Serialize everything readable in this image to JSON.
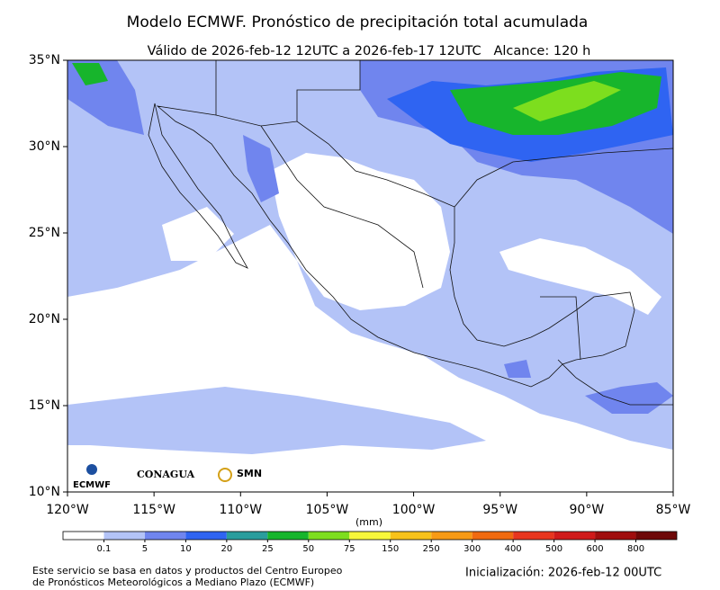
{
  "chart_data": {
    "type": "map",
    "title": "Modelo ECMWF. Pronóstico de precipitación total acumulada",
    "subtitle": "Válido de 2026-feb-12 12UTC a 2026-feb-17 12UTC   Alcance: 120 h",
    "xlim": [
      -120,
      -85
    ],
    "ylim": [
      10,
      35
    ],
    "xticks": [
      {
        "value": -120,
        "label": "120°W"
      },
      {
        "value": -115,
        "label": "115°W"
      },
      {
        "value": -110,
        "label": "110°W"
      },
      {
        "value": -105,
        "label": "105°W"
      },
      {
        "value": -100,
        "label": "100°W"
      },
      {
        "value": -95,
        "label": "95°W"
      },
      {
        "value": -90,
        "label": "90°W"
      },
      {
        "value": -85,
        "label": "85°W"
      }
    ],
    "yticks": [
      {
        "value": 10,
        "label": "10°N"
      },
      {
        "value": 15,
        "label": "15°N"
      },
      {
        "value": 20,
        "label": "20°N"
      },
      {
        "value": 25,
        "label": "25°N"
      },
      {
        "value": 30,
        "label": "30°N"
      },
      {
        "value": 35,
        "label": "35°N"
      }
    ],
    "colorbar": {
      "label": "(mm)",
      "levels": [
        0.1,
        5,
        10,
        20,
        25,
        50,
        75,
        150,
        250,
        300,
        400,
        500,
        600,
        800
      ],
      "colors": [
        "#ffffff",
        "#b3c3f7",
        "#7085ee",
        "#2f64f2",
        "#2a9d9d",
        "#17b52c",
        "#7dde1e",
        "#f8f83a",
        "#f8c21a",
        "#f89a14",
        "#f06a10",
        "#e8361e",
        "#d01a1a",
        "#a00e0e",
        "#6e0808"
      ]
    }
  },
  "logos": {
    "ecmwf": "ECMWF",
    "conagua": "CONAGUA",
    "smn": "SMN"
  },
  "footer": {
    "note": [
      "Este servicio se basa en datos y productos del Centro Europeo",
      "de Pronósticos Meteorológicos a Mediano Plazo (ECMWF)"
    ],
    "init": "Inicialización: 2026-feb-12 00UTC"
  }
}
